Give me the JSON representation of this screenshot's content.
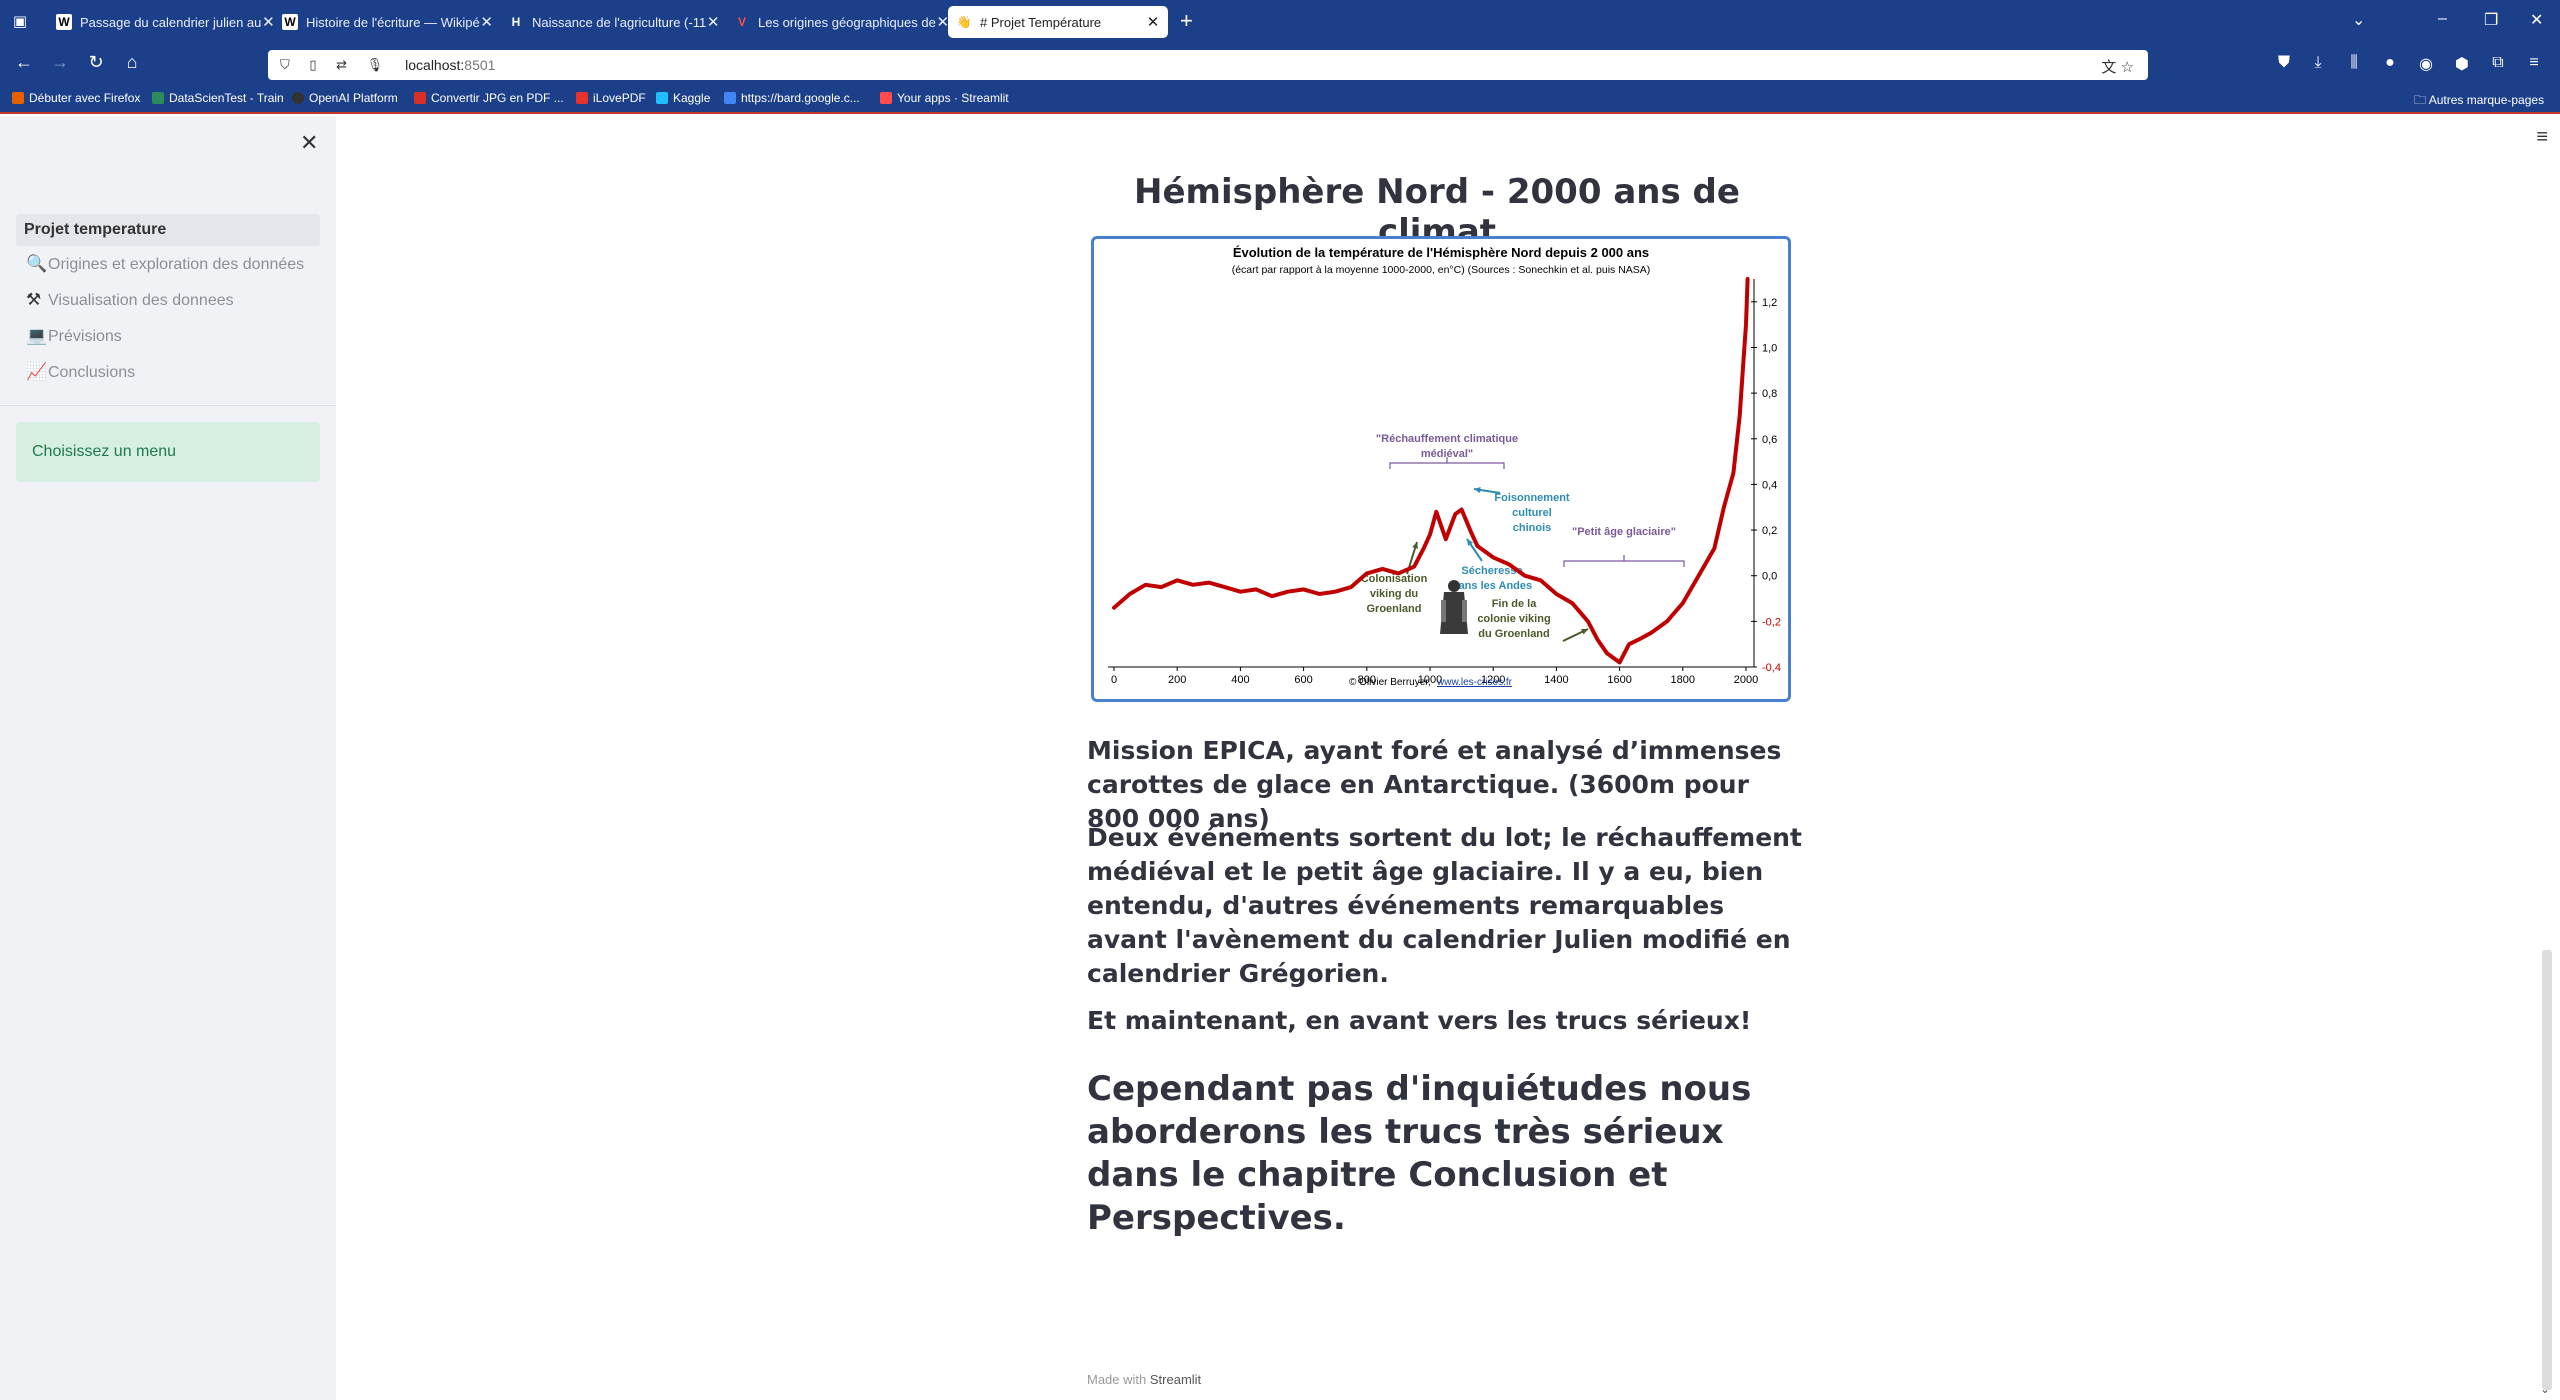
{
  "browser": {
    "tabs": [
      {
        "label": "Passage du calendrier julien au",
        "favicon": "W"
      },
      {
        "label": "Histoire de l'écriture — Wikipé",
        "favicon": "W"
      },
      {
        "label": "Naissance de l'agriculture (-11",
        "favicon": "H"
      },
      {
        "label": "Les origines géographiques de",
        "favicon": "V"
      },
      {
        "label": "# Projet Température",
        "favicon": "👋"
      }
    ],
    "url_host": "localhost:",
    "url_port": "8501",
    "bookmarks": [
      {
        "label": "Débuter avec Firefox",
        "color": "#e66000"
      },
      {
        "label": "DataScienTest - Train",
        "color": "#2d8a5a"
      },
      {
        "label": "OpenAI Platform",
        "color": "#333333"
      },
      {
        "label": "Convertir JPG en PDF ...",
        "color": "#d93025"
      },
      {
        "label": "iLovePDF",
        "color": "#e5322d"
      },
      {
        "label": "Kaggle",
        "color": "#20beff"
      },
      {
        "label": "https://bard.google.c...",
        "color": "#4285f4"
      },
      {
        "label": "Your apps · Streamlit",
        "color": "#ff4b4b"
      }
    ],
    "other_bookmarks": "Autres marque-pages"
  },
  "sidebar": {
    "menu_title": "Projet temperature",
    "items": [
      {
        "label": "Origines et exploration des données",
        "icon": "magnifier-icon"
      },
      {
        "label": "Visualisation des donnees",
        "icon": "hammer-icon"
      },
      {
        "label": "Prévisions",
        "icon": "laptop-icon"
      },
      {
        "label": "Conclusions",
        "icon": "chart-icon"
      }
    ],
    "info": "Choisissez un menu"
  },
  "main": {
    "title": "Hémisphère Nord - 2000 ans de climat",
    "p1": "Mission EPICA, ayant foré et analysé d’immenses carottes de glace en Antarctique. (3600m pour 800 000 ans)",
    "p2": "Deux événements sortent du lot; le réchauffement médiéval et le petit âge glaciaire. Il y a eu, bien entendu, d'autres événements remarquables avant l'avènement du calendrier Julien modifié en calendrier Grégorien.",
    "p3": "Et maintenant, en avant vers les trucs sérieux!",
    "p4": "Cependant pas d'inquiétudes nous aborderons les trucs très sérieux dans le chapitre Conclusion et Perspectives."
  },
  "footer": {
    "prefix": "Made with",
    "brand": "Streamlit"
  },
  "chart_data": {
    "type": "line",
    "title": "Évolution de la température de l'Hémisphère Nord depuis 2 000 ans",
    "subtitle": "(écart par rapport à la moyenne 1000-2000, en°C) (Sources : Sonechkin et al. puis NASA)",
    "credit": "© Olivier Berruyer,",
    "credit_link": "www.les-crises.fr",
    "x_ticks": [
      "0",
      "200",
      "400",
      "600",
      "800",
      "1000",
      "1200",
      "1400",
      "1600",
      "1800",
      "2000"
    ],
    "y_ticks": [
      "1,2",
      "1,0",
      "0,8",
      "0,6",
      "0,4",
      "0,2",
      "0,0",
      "-0,2",
      "-0,4"
    ],
    "xlim": [
      0,
      2000
    ],
    "ylim": [
      -0.4,
      1.3
    ],
    "series": [
      {
        "color": "#c00000",
        "x": [
          0,
          50,
          100,
          150,
          200,
          250,
          300,
          350,
          400,
          450,
          500,
          550,
          600,
          650,
          700,
          750,
          800,
          850,
          900,
          950,
          980,
          1000,
          1020,
          1050,
          1080,
          1100,
          1130,
          1150,
          1200,
          1250,
          1300,
          1350,
          1400,
          1450,
          1500,
          1530,
          1560,
          1600,
          1630,
          1660,
          1700,
          1750,
          1800,
          1850,
          1900,
          1930,
          1960,
          1980,
          1990,
          2000,
          2005
        ],
        "y": [
          -0.14,
          -0.08,
          -0.04,
          -0.05,
          -0.02,
          -0.04,
          -0.03,
          -0.05,
          -0.07,
          -0.06,
          -0.09,
          -0.07,
          -0.06,
          -0.08,
          -0.07,
          -0.05,
          0.01,
          0.03,
          0.01,
          0.04,
          0.12,
          0.18,
          0.28,
          0.16,
          0.27,
          0.29,
          0.19,
          0.13,
          0.08,
          0.05,
          0.0,
          -0.02,
          -0.08,
          -0.12,
          -0.2,
          -0.28,
          -0.34,
          -0.38,
          -0.3,
          -0.28,
          -0.25,
          -0.2,
          -0.12,
          0.0,
          0.12,
          0.3,
          0.45,
          0.7,
          0.9,
          1.1,
          1.3
        ]
      }
    ],
    "annotations": [
      {
        "text": "\"Réchauffement climatique médiéval\"",
        "color": "#7a5a9a"
      },
      {
        "text": "Foisonnement culturel chinois",
        "color": "#2e8bb5"
      },
      {
        "text": "\"Petit âge glaciaire\"",
        "color": "#7a5a9a"
      },
      {
        "text": "Sécheresse dans les Andes",
        "color": "#2e8bb5"
      },
      {
        "text": "Colonisation viking du Groenland",
        "color": "#4a5a2a"
      },
      {
        "text": "Fin de la colonie viking du Groenland",
        "color": "#4a5a2a"
      }
    ]
  }
}
